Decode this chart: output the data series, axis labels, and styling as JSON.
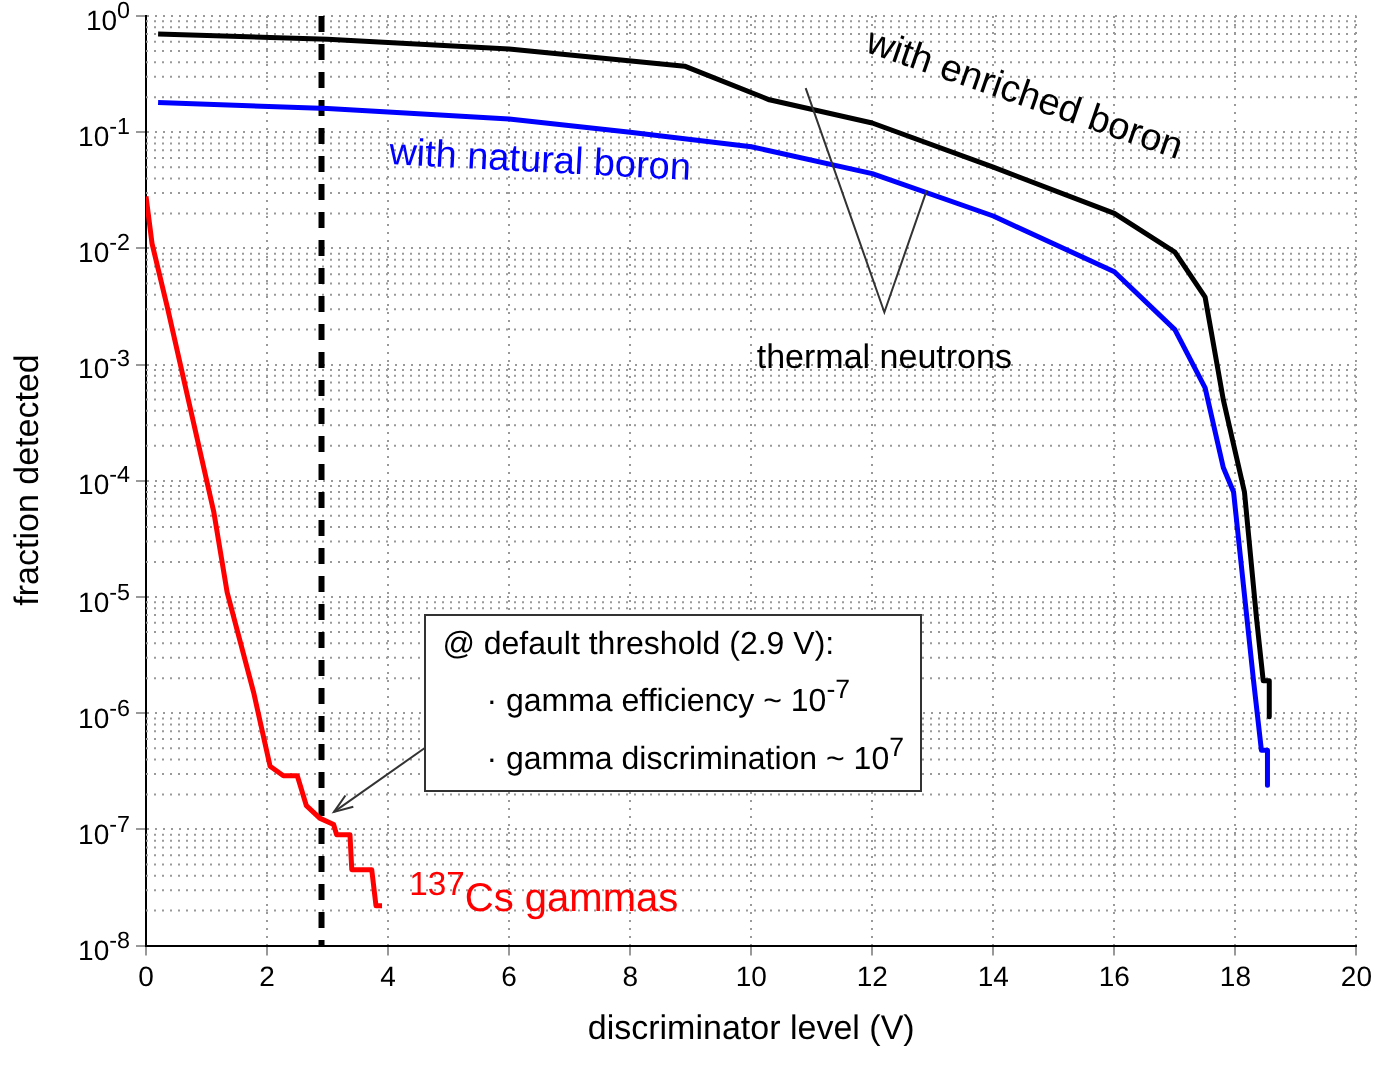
{
  "chart_data": {
    "type": "line",
    "xlabel": "discriminator level (V)",
    "ylabel": "fraction detected",
    "xlim": [
      0,
      20
    ],
    "xticks": [
      0,
      2,
      4,
      6,
      8,
      10,
      12,
      14,
      16,
      18,
      20
    ],
    "ylim": [
      1e-08,
      1
    ],
    "yticks": [
      {
        "value": 1,
        "label": "10$^{0}$"
      },
      {
        "value": 0.1,
        "label": "10$^{-1}$"
      },
      {
        "value": 0.01,
        "label": "10$^{-2}$"
      },
      {
        "value": 0.001,
        "label": "10$^{-3}$"
      },
      {
        "value": 0.0001,
        "label": "10$^{-4}$"
      },
      {
        "value": 1e-05,
        "label": "10$^{-5}$"
      },
      {
        "value": 1e-06,
        "label": "10$^{-6}$"
      },
      {
        "value": 1e-07,
        "label": "10$^{-7}$"
      },
      {
        "value": 1e-08,
        "label": "10$^{-8}$"
      }
    ],
    "log": "y",
    "grid": true,
    "legend": false,
    "marker": "none",
    "line_style": "solid",
    "series": [
      {
        "name": "with enriched boron",
        "color": "#000000",
        "x": [
          0.2,
          3,
          6,
          8.9,
          10.3,
          12,
          14,
          16,
          17,
          17.5,
          17.8,
          18.15,
          18.35,
          18.46,
          18.56,
          18.56
        ],
        "values": [
          0.7,
          0.63,
          0.52,
          0.37,
          0.19,
          0.12,
          0.05,
          0.02,
          0.0093,
          0.0038,
          0.0005,
          8e-05,
          6.5e-06,
          1.9e-06,
          1.9e-06,
          9.3e-07
        ]
      },
      {
        "name": "with natural boron",
        "color": "#0000ff",
        "x": [
          0.2,
          3,
          6,
          8,
          10,
          12,
          14,
          16,
          17,
          17.5,
          17.8,
          17.97,
          18.3,
          18.43,
          18.53,
          18.53
        ],
        "values": [
          0.18,
          0.16,
          0.13,
          0.1,
          0.075,
          0.044,
          0.019,
          0.0063,
          0.002,
          0.00063,
          0.00013,
          8e-05,
          1.9e-06,
          4.8e-07,
          4.8e-07,
          2.4e-07
        ]
      },
      {
        "name": "$^{137}$Cs gammas",
        "color": "#ff0000",
        "x": [
          0,
          0.1,
          0.36,
          1.12,
          1.34,
          1.78,
          2.05,
          2.27,
          2.5,
          2.65,
          2.87,
          3.1,
          3.15,
          3.37,
          3.4,
          3.73,
          3.8,
          3.9
        ],
        "values": [
          0.028,
          0.011,
          0.003,
          5.4e-05,
          1.1e-05,
          1.5e-06,
          3.5e-07,
          2.9e-07,
          2.9e-07,
          1.6e-07,
          1.25e-07,
          1.1e-07,
          9e-08,
          9e-08,
          4.5e-08,
          4.5e-08,
          2.2e-08,
          2.2e-08
        ]
      }
    ],
    "ref_lines": [
      {
        "axis": "x",
        "value": 2.9,
        "color": "#000000",
        "line_style": "dashed"
      }
    ],
    "annotations": [
      "thermal neutrons",
      "@ default threshold (2.9 V):",
      "· gamma efficiency ~ 10$^{-7}$",
      "· gamma discrimination ~ 10$^{7}$"
    ]
  }
}
